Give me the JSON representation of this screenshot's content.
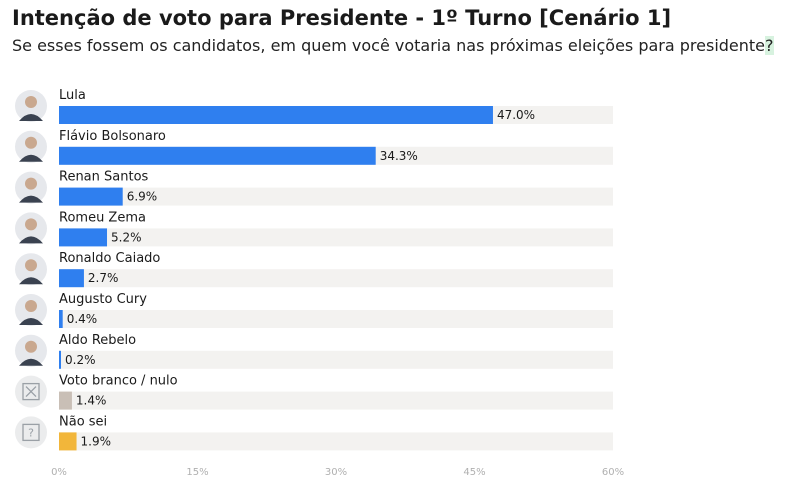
{
  "title": "Intenção de voto para Presidente - 1º Turno [Cenário 1]",
  "subtitle": "Se esses fossem os candidatos, em quem você votaria nas próximas eleições para presidente",
  "subtitle_mark": "?",
  "colors": {
    "candidate": "#2f7fef",
    "branco": "#c9bfb6",
    "naosei": "#f2b63a",
    "track": "#f3f2f0"
  },
  "chart_data": {
    "type": "bar",
    "orientation": "horizontal",
    "categories": [
      "Lula",
      "Flávio Bolsonaro",
      "Renan Santos",
      "Romeu Zema",
      "Ronaldo Caiado",
      "Augusto Cury",
      "Aldo Rebelo",
      "Voto branco / nulo",
      "Não sei"
    ],
    "values": [
      47.0,
      34.3,
      6.9,
      5.2,
      2.7,
      0.4,
      0.2,
      1.4,
      1.9
    ],
    "value_labels": [
      "47.0%",
      "34.3%",
      "6.9%",
      "5.2%",
      "2.7%",
      "0.4%",
      "0.2%",
      "1.4%",
      "1.9%"
    ],
    "bar_colors": [
      "#2f7fef",
      "#2f7fef",
      "#2f7fef",
      "#2f7fef",
      "#2f7fef",
      "#2f7fef",
      "#2f7fef",
      "#c9bfb6",
      "#f2b63a"
    ],
    "icons": [
      "photo",
      "photo",
      "photo",
      "photo",
      "photo",
      "photo",
      "photo",
      "x-box-icon",
      "question-box-icon"
    ],
    "xlim": [
      0,
      60
    ],
    "xticks": [
      0,
      15,
      30,
      45,
      60
    ],
    "xtick_labels": [
      "0%",
      "15%",
      "30%",
      "45%",
      "60%"
    ],
    "grid": false
  }
}
